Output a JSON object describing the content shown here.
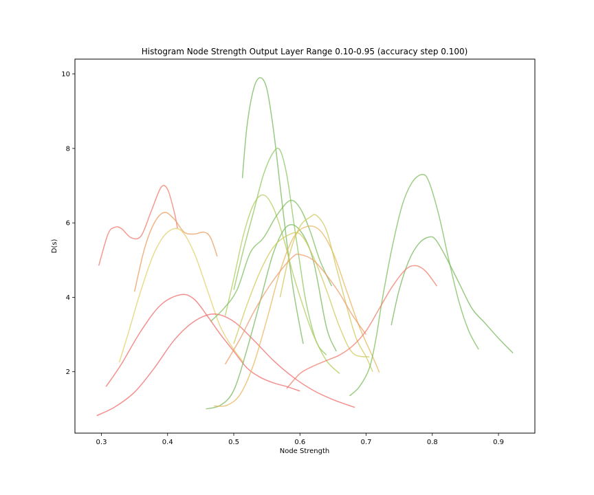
{
  "chart_data": {
    "type": "line",
    "title": "Histogram Node Strength Output Layer Range 0.10-0.95 (accuracy step 0.100)",
    "xlabel": "Node Strength",
    "ylabel": "D(s)",
    "xlim": [
      0.26,
      0.955
    ],
    "ylim": [
      0.35,
      10.4
    ],
    "xticks": [
      0.3,
      0.4,
      0.5,
      0.6,
      0.7,
      0.8,
      0.9
    ],
    "xtick_labels": [
      "0.3",
      "0.4",
      "0.5",
      "0.6",
      "0.7",
      "0.8",
      "0.9"
    ],
    "yticks": [
      2,
      4,
      6,
      8,
      10
    ],
    "ytick_labels": [
      "2",
      "4",
      "6",
      "8",
      "10"
    ],
    "grid": false,
    "legend": "none",
    "series": [
      {
        "color": "#f07a6a",
        "x": [
          0.296,
          0.31,
          0.32,
          0.33,
          0.345,
          0.36,
          0.375,
          0.39,
          0.4,
          0.41,
          0.415
        ],
        "y": [
          4.85,
          5.7,
          5.88,
          5.85,
          5.6,
          5.65,
          6.3,
          6.95,
          6.9,
          6.3,
          5.85
        ]
      },
      {
        "color": "#eb9a5a",
        "x": [
          0.35,
          0.365,
          0.38,
          0.395,
          0.41,
          0.425,
          0.44,
          0.455,
          0.465,
          0.475
        ],
        "y": [
          4.15,
          5.3,
          6.0,
          6.28,
          6.1,
          5.75,
          5.7,
          5.75,
          5.6,
          5.1
        ]
      },
      {
        "color": "#e0cf6a",
        "x": [
          0.327,
          0.34,
          0.36,
          0.38,
          0.4,
          0.42,
          0.44,
          0.46,
          0.48,
          0.5,
          0.515
        ],
        "y": [
          2.25,
          3.0,
          4.2,
          5.2,
          5.75,
          5.8,
          5.2,
          4.2,
          3.2,
          2.6,
          2.25
        ]
      },
      {
        "color": "#f06a6a",
        "x": [
          0.307,
          0.33,
          0.36,
          0.39,
          0.42,
          0.44,
          0.46,
          0.48,
          0.5,
          0.52,
          0.54,
          0.56,
          0.58,
          0.6
        ],
        "y": [
          1.6,
          2.2,
          3.1,
          3.8,
          4.07,
          3.95,
          3.5,
          3.0,
          2.55,
          2.1,
          1.85,
          1.7,
          1.6,
          1.48
        ]
      },
      {
        "color": "#f06a6a",
        "x": [
          0.293,
          0.32,
          0.35,
          0.38,
          0.41,
          0.44,
          0.47,
          0.5,
          0.53,
          0.56,
          0.59,
          0.62,
          0.65,
          0.683
        ],
        "y": [
          0.82,
          1.05,
          1.45,
          2.1,
          2.85,
          3.35,
          3.55,
          3.35,
          2.85,
          2.3,
          1.85,
          1.5,
          1.25,
          1.04
        ]
      },
      {
        "color": "#75b85a",
        "x": [
          0.513,
          0.52,
          0.53,
          0.54,
          0.55,
          0.56,
          0.57,
          0.58,
          0.59,
          0.6,
          0.605
        ],
        "y": [
          7.2,
          8.6,
          9.6,
          9.9,
          9.6,
          8.5,
          7.0,
          5.5,
          4.2,
          3.2,
          2.75
        ]
      },
      {
        "color": "#8ec65e",
        "x": [
          0.5,
          0.515,
          0.53,
          0.545,
          0.56,
          0.57,
          0.58,
          0.59,
          0.6,
          0.61,
          0.625,
          0.64
        ],
        "y": [
          4.2,
          5.3,
          6.3,
          7.3,
          7.9,
          7.95,
          7.3,
          6.1,
          4.9,
          3.8,
          2.8,
          2.45
        ]
      },
      {
        "color": "#aecb5a",
        "x": [
          0.487,
          0.5,
          0.515,
          0.53,
          0.545,
          0.56,
          0.575,
          0.59,
          0.605,
          0.62,
          0.64,
          0.66
        ],
        "y": [
          3.5,
          4.5,
          5.7,
          6.5,
          6.75,
          6.4,
          5.6,
          4.6,
          3.75,
          3.0,
          2.3,
          1.95
        ]
      },
      {
        "color": "#7abd5a",
        "x": [
          0.465,
          0.485,
          0.505,
          0.525,
          0.545,
          0.565,
          0.585,
          0.6,
          0.615,
          0.63,
          0.648
        ],
        "y": [
          3.35,
          3.7,
          4.2,
          5.2,
          5.6,
          6.2,
          6.6,
          6.4,
          5.8,
          5.0,
          4.3
        ]
      },
      {
        "color": "#75b85a",
        "x": [
          0.458,
          0.48,
          0.5,
          0.52,
          0.54,
          0.56,
          0.58,
          0.6,
          0.62,
          0.64,
          0.655
        ],
        "y": [
          1.0,
          1.1,
          1.5,
          2.6,
          3.9,
          5.2,
          5.9,
          5.8,
          5.0,
          3.2,
          2.55
        ]
      },
      {
        "color": "#ceca5a",
        "x": [
          0.5,
          0.52,
          0.54,
          0.56,
          0.58,
          0.6,
          0.62,
          0.64,
          0.66,
          0.68,
          0.705
        ],
        "y": [
          2.75,
          3.8,
          4.7,
          5.35,
          5.65,
          5.7,
          5.1,
          4.2,
          3.2,
          2.5,
          2.4
        ]
      },
      {
        "color": "#e8b45a",
        "x": [
          0.47,
          0.49,
          0.51,
          0.53,
          0.55,
          0.57,
          0.59,
          0.61,
          0.63,
          0.65,
          0.67,
          0.69,
          0.71,
          0.72
        ],
        "y": [
          1.08,
          1.1,
          1.4,
          2.2,
          3.4,
          4.7,
          5.6,
          5.9,
          5.8,
          5.2,
          4.2,
          3.2,
          2.4,
          1.98
        ]
      },
      {
        "color": "#ceca5a",
        "x": [
          0.57,
          0.585,
          0.6,
          0.615,
          0.625,
          0.64,
          0.655,
          0.67,
          0.685,
          0.7,
          0.71
        ],
        "y": [
          4.0,
          5.2,
          5.9,
          6.15,
          6.2,
          5.8,
          4.8,
          3.8,
          2.9,
          2.4,
          2.0
        ]
      },
      {
        "color": "#ec9a66",
        "x": [
          0.487,
          0.51,
          0.53,
          0.55,
          0.57,
          0.59,
          0.6,
          0.62,
          0.64,
          0.66,
          0.68,
          0.7
        ],
        "y": [
          2.2,
          2.9,
          3.6,
          4.2,
          4.7,
          5.1,
          5.15,
          5.0,
          4.6,
          4.1,
          3.5,
          3.0
        ]
      },
      {
        "color": "#7abd5a",
        "x": [
          0.675,
          0.69,
          0.705,
          0.715,
          0.725,
          0.74,
          0.755,
          0.77,
          0.785,
          0.795,
          0.81,
          0.825,
          0.84,
          0.855,
          0.87
        ],
        "y": [
          1.35,
          1.6,
          2.1,
          2.9,
          4.0,
          5.4,
          6.5,
          7.1,
          7.3,
          7.1,
          6.2,
          5.0,
          3.9,
          3.1,
          2.6
        ]
      },
      {
        "color": "#75b85a",
        "x": [
          0.738,
          0.75,
          0.765,
          0.78,
          0.795,
          0.805,
          0.82,
          0.84,
          0.86,
          0.88,
          0.9,
          0.922
        ],
        "y": [
          3.25,
          4.2,
          5.0,
          5.45,
          5.62,
          5.55,
          5.1,
          4.4,
          3.7,
          3.3,
          2.9,
          2.5
        ]
      },
      {
        "color": "#f07a6a",
        "x": [
          0.58,
          0.6,
          0.62,
          0.64,
          0.66,
          0.68,
          0.7,
          0.72,
          0.74,
          0.76,
          0.775,
          0.79,
          0.807
        ],
        "y": [
          1.55,
          1.95,
          2.15,
          2.3,
          2.45,
          2.7,
          3.1,
          3.7,
          4.3,
          4.75,
          4.85,
          4.7,
          4.3
        ]
      }
    ]
  }
}
